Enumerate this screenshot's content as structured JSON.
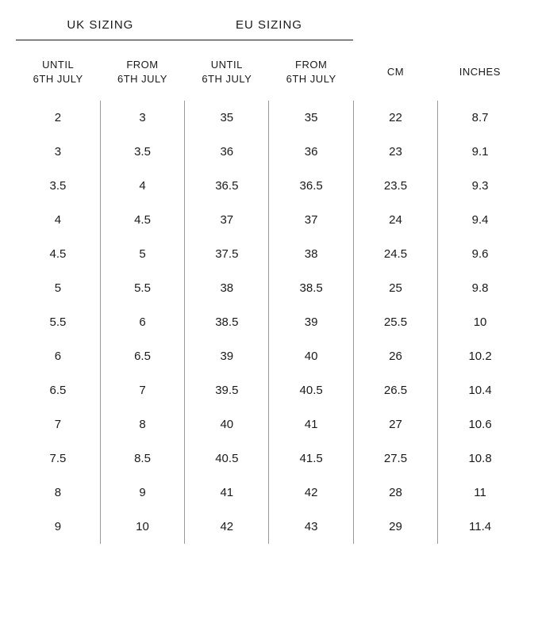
{
  "colors": {
    "text": "#1a1a1a",
    "highlight": "#2e8b2e",
    "separator": "#999999",
    "background": "#ffffff"
  },
  "groupHeaders": {
    "uk": "UK SIZING",
    "eu": "EU SIZING"
  },
  "columnHeaders": {
    "ukUntil": "UNTIL 6TH JULY",
    "ukFrom": "FROM 6TH JULY",
    "euUntil": "UNTIL 6TH JULY",
    "euFrom": "FROM 6TH JULY",
    "cm": "CM",
    "inches": "INCHES"
  },
  "rows": [
    {
      "ukUntil": "2",
      "ukFrom": "3",
      "euUntil": "35",
      "euFrom": "35",
      "euFromGreen": false,
      "cm": "22",
      "inches": "8.7"
    },
    {
      "ukUntil": "3",
      "ukFrom": "3.5",
      "euUntil": "36",
      "euFrom": "36",
      "euFromGreen": false,
      "cm": "23",
      "inches": "9.1"
    },
    {
      "ukUntil": "3.5",
      "ukFrom": "4",
      "euUntil": "36.5",
      "euFrom": "36.5",
      "euFromGreen": false,
      "cm": "23.5",
      "inches": "9.3"
    },
    {
      "ukUntil": "4",
      "ukFrom": "4.5",
      "euUntil": "37",
      "euFrom": "37",
      "euFromGreen": false,
      "cm": "24",
      "inches": "9.4"
    },
    {
      "ukUntil": "4.5",
      "ukFrom": "5",
      "euUntil": "37.5",
      "euFrom": "38",
      "euFromGreen": true,
      "cm": "24.5",
      "inches": "9.6"
    },
    {
      "ukUntil": "5",
      "ukFrom": "5.5",
      "euUntil": "38",
      "euFrom": "38.5",
      "euFromGreen": true,
      "cm": "25",
      "inches": "9.8"
    },
    {
      "ukUntil": "5.5",
      "ukFrom": "6",
      "euUntil": "38.5",
      "euFrom": "39",
      "euFromGreen": true,
      "cm": "25.5",
      "inches": "10"
    },
    {
      "ukUntil": "6",
      "ukFrom": "6.5",
      "euUntil": "39",
      "euFrom": "40",
      "euFromGreen": true,
      "cm": "26",
      "inches": "10.2"
    },
    {
      "ukUntil": "6.5",
      "ukFrom": "7",
      "euUntil": "39.5",
      "euFrom": "40.5",
      "euFromGreen": true,
      "cm": "26.5",
      "inches": "10.4"
    },
    {
      "ukUntil": "7",
      "ukFrom": "8",
      "euUntil": "40",
      "euFrom": "41",
      "euFromGreen": true,
      "cm": "27",
      "inches": "10.6"
    },
    {
      "ukUntil": "7.5",
      "ukFrom": "8.5",
      "euUntil": "40.5",
      "euFrom": "41.5",
      "euFromGreen": true,
      "cm": "27.5",
      "inches": "10.8"
    },
    {
      "ukUntil": "8",
      "ukFrom": "9",
      "euUntil": "41",
      "euFrom": "42",
      "euFromGreen": true,
      "cm": "28",
      "inches": "11"
    },
    {
      "ukUntil": "9",
      "ukFrom": "10",
      "euUntil": "42",
      "euFrom": "43",
      "euFromGreen": true,
      "cm": "29",
      "inches": "11.4"
    }
  ]
}
